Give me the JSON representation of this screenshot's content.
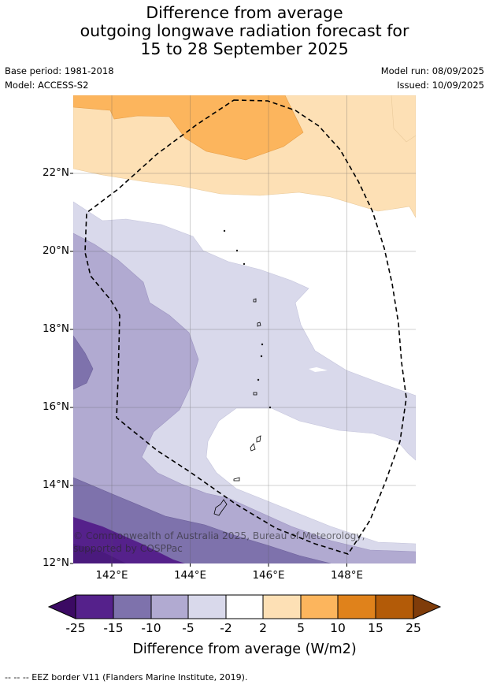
{
  "title": {
    "line1": "Difference from average",
    "line2": "outgoing longwave radiation forecast for",
    "line3": "15 to 28 September 2025"
  },
  "meta": {
    "base_period": "Base period: 1981-2018",
    "model": "Model: ACCESS-S2",
    "model_run": "Model run: 08/09/2025",
    "issued": "Issued: 10/09/2025"
  },
  "map": {
    "lat_labels": [
      "22°N",
      "20°N",
      "18°N",
      "16°N",
      "14°N",
      "12°N"
    ],
    "lon_labels": [
      "142°E",
      "144°E",
      "146°E",
      "148°E"
    ],
    "copyright": "© Commonwealth of Australia 2025, Bureau of Meteorology, supported by COSPPac"
  },
  "colorbar": {
    "ticks": [
      "-25",
      "-15",
      "-10",
      "-5",
      "-2",
      "2",
      "5",
      "10",
      "15",
      "25"
    ],
    "colors": [
      "#3b0a63",
      "#55218b",
      "#7e72ac",
      "#b1aad1",
      "#d9d9eb",
      "#ffffff",
      "#fde0b5",
      "#fcb55d",
      "#e0821b",
      "#b35b08",
      "#7f3c0a"
    ],
    "label": "Difference from average (W/m2)"
  },
  "legend": {
    "text": "--  --  -- EEZ border V11 (Flanders Marine Institute, 2019)."
  }
}
